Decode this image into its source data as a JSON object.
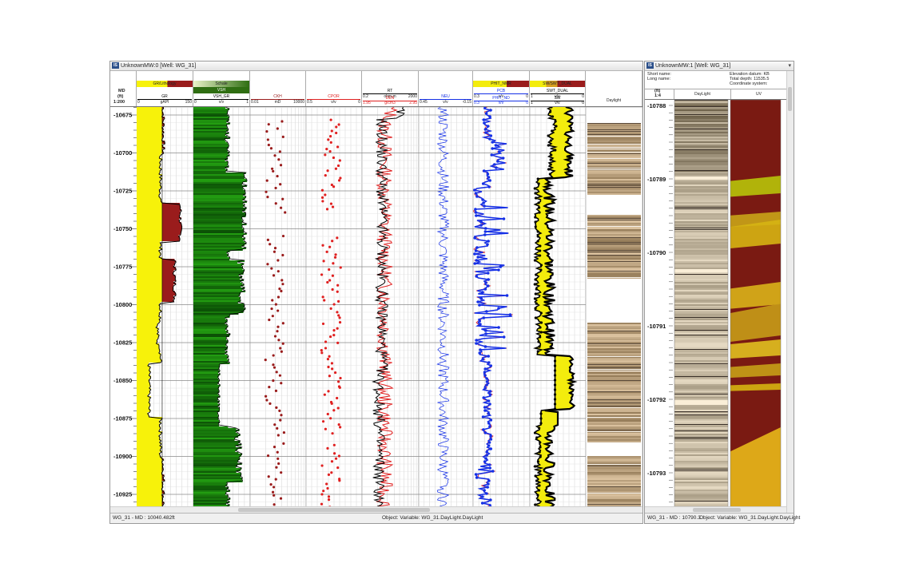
{
  "window1": {
    "title": "UnknownMW:0 [Well: WG_31]",
    "header": {
      "md_label": "MD",
      "unit": "(ft)",
      "scale": "1:200"
    },
    "tracks": [
      {
        "name": "gr",
        "swatch": "GR/Lithology",
        "swatch2": "",
        "curve": "GR",
        "min": "0",
        "unit": "gAPI",
        "max": "150"
      },
      {
        "name": "vsh",
        "swatch": "Schale",
        "swatch2": "VSH",
        "curve": "VSH_GR",
        "min": "0",
        "unit": "v/v",
        "max": "1"
      },
      {
        "name": "ckh",
        "swatch": "",
        "swatch2": "",
        "curve": "CKH",
        "min": "0.01",
        "unit": "mD",
        "max": "10000"
      },
      {
        "name": "cpor",
        "swatch": "",
        "swatch2": "",
        "curve": "CPOR",
        "min": "0.5",
        "unit": "v/v",
        "max": "0"
      },
      {
        "name": "rt",
        "swatch": "",
        "swatch2": "",
        "curve": "RT",
        "min": "0.2",
        "unit": "ohm.m",
        "max": "2000",
        "curve2": "DEN",
        "min2": "1.95",
        "unit2": "g/cm3",
        "max2": "2.95"
      },
      {
        "name": "neu",
        "swatch": "",
        "swatch2": "",
        "curve": "NEU",
        "min": "0.45",
        "unit": "v/v",
        "max": "-0.15"
      },
      {
        "name": "phit",
        "swatch": "PHIT_NMR",
        "swatch2": "",
        "curve": "PCB",
        "min": "0.3",
        "unit": "v/v",
        "max": "0",
        "curve2": "PHIT_ND",
        "min2": "0.3",
        "unit2": "v/v",
        "max2": "0"
      },
      {
        "name": "sw",
        "swatch": "SW/SWT_DUAL",
        "swatch2": "",
        "curve": "SWT_DUAL",
        "min": "1",
        "unit": "v/v",
        "max": "0",
        "curve2": "SW",
        "min2": "1",
        "unit2": "v/v",
        "max2": "0"
      },
      {
        "name": "daylight",
        "swatch": "",
        "swatch2": "",
        "curve": "Daylight",
        "min": "",
        "unit": "",
        "max": ""
      }
    ],
    "depths": [
      "10675",
      "10700",
      "10725",
      "10750",
      "10775",
      "10800",
      "10825",
      "10850",
      "10875",
      "10900",
      "10925"
    ],
    "status_left": "WG_31 - MD : 10040.482ft",
    "status_right": "Object: Variable: WG_31.DayLight.DayLight"
  },
  "window2": {
    "title": "UnknownMW:1 [Well: WG_31]",
    "info": {
      "short_name": "Short name:",
      "long_name": "Long name:",
      "elev": "Elevation datum: KB",
      "total_depth": "Total depth: 11535.5",
      "coords": "Coordinate system:"
    },
    "header": {
      "unit": "(ft)",
      "scale": "1:4",
      "col1": "DayLight",
      "col2": "UV"
    },
    "depths": [
      "10788",
      "10789",
      "10790",
      "10791",
      "10792",
      "10793"
    ],
    "status_left": "WG_31 - MD : 10790.3",
    "status_right": "Object: Variable: WG_31.DayLight.DayLight"
  },
  "colors": {
    "gr_fill": "#f7f20a",
    "gr_shale": "#9a1c1c",
    "vsh_green": "#2f6e12",
    "red": "#e02020",
    "blue": "#1530e6",
    "black": "#000000",
    "yellow": "#f3ec0d",
    "uv_red": "#7a1a12",
    "uv_yellow": "#e8b81a"
  }
}
